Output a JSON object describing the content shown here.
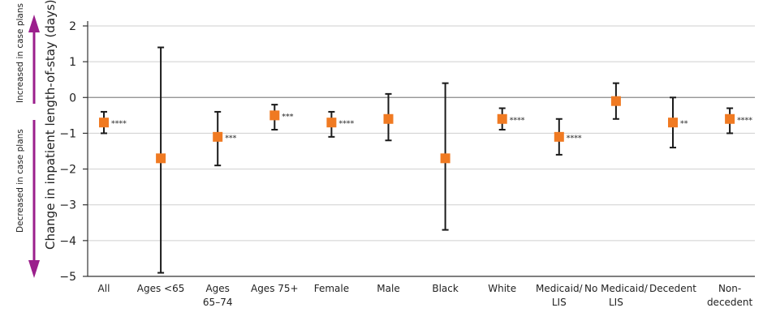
{
  "chart_data": {
    "type": "scatter",
    "ylabel": "Change in inpatient length-of-stay (days)",
    "side_labels": {
      "up": "Increased in case plans",
      "down": "Decreased in case plans"
    },
    "ylim": [
      -5,
      2
    ],
    "yticks": [
      "2",
      "1",
      "0",
      "−1",
      "−2",
      "−3",
      "−4",
      "−5"
    ],
    "grid": true,
    "categories": [
      [
        "All"
      ],
      [
        "Ages <65"
      ],
      [
        "Ages",
        "65–74"
      ],
      [
        "Ages 75+"
      ],
      [
        "Female"
      ],
      [
        "Male"
      ],
      [
        "Black"
      ],
      [
        "White"
      ],
      [
        "Medicaid/",
        "LIS"
      ],
      [
        "No Medicaid/",
        "LIS"
      ],
      [
        "Decedent"
      ],
      [
        "Non-",
        "decedent"
      ]
    ],
    "series": [
      {
        "values": [
          -0.7,
          -1.7,
          -1.1,
          -0.5,
          -0.7,
          -0.6,
          -1.7,
          -0.6,
          -1.1,
          -0.1,
          -0.7,
          -0.6
        ],
        "ci_low": [
          -1.0,
          -4.9,
          -1.9,
          -0.9,
          -1.1,
          -1.2,
          -3.7,
          -0.9,
          -1.6,
          -0.6,
          -1.4,
          -1.0
        ],
        "ci_high": [
          -0.4,
          1.4,
          -0.4,
          -0.2,
          -0.4,
          0.1,
          0.4,
          -0.3,
          -0.6,
          0.4,
          0.0,
          -0.3
        ],
        "significance": [
          "****",
          "",
          "***",
          "***",
          "****",
          "",
          "",
          "****",
          "****",
          "",
          "**",
          "****"
        ]
      }
    ],
    "colors": {
      "marker": "#F07A22",
      "arrow": "#9B1F8C",
      "error_bar": "#1a1a1a",
      "grid": "#cfcfcf"
    }
  }
}
